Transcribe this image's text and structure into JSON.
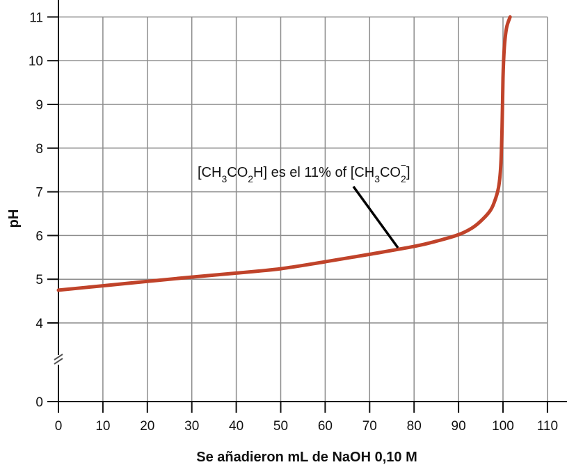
{
  "chart_data": {
    "type": "line",
    "title": "",
    "xlabel": "Se añadieron mL de NaOH 0,10 M",
    "ylabel": "pH",
    "xlim": [
      0,
      110
    ],
    "ylim": [
      0,
      11
    ],
    "y_axis_break": [
      0,
      4
    ],
    "grid": true,
    "legend": null,
    "x_ticks": [
      0,
      10,
      20,
      30,
      40,
      50,
      60,
      70,
      80,
      90,
      100,
      110
    ],
    "y_ticks": [
      0,
      4,
      5,
      6,
      7,
      8,
      9,
      10,
      11
    ],
    "series": [
      {
        "name": "Titration curve",
        "color": "#C0432A",
        "x": [
          0,
          10,
          20,
          30,
          40,
          50,
          60,
          70,
          80,
          85,
          90,
          93,
          95,
          97,
          98,
          99,
          99.5,
          99.8,
          100,
          100.3,
          100.8,
          101.6
        ],
        "y": [
          4.75,
          4.85,
          4.95,
          5.05,
          5.14,
          5.24,
          5.4,
          5.57,
          5.75,
          5.87,
          6.02,
          6.17,
          6.33,
          6.55,
          6.75,
          7.1,
          7.6,
          8.5,
          9.6,
          10.3,
          10.75,
          11.0
        ]
      }
    ],
    "annotations": [
      {
        "text_parts": [
          "[CH",
          "3",
          "CO",
          "2",
          "H] es el 11% of [CH",
          "3",
          "CO",
          "2",
          "−",
          "]"
        ],
        "plain_text": "[CH3CO2H] es el 11% of [CH3CO2−]",
        "points_to": {
          "x": 76,
          "y": 5.67
        }
      }
    ]
  },
  "labels": {
    "xlabel": "Se añadieron mL de NaOH 0,10 M",
    "ylabel": "pH",
    "annotation": {
      "p1": "[CH",
      "s1": "3",
      "p2": "CO",
      "s2": "2",
      "p3": "H] es el 11% of [CH",
      "s3": "3",
      "p4": "CO",
      "s4": "2",
      "sup": "−",
      "p5": "]"
    }
  },
  "colors": {
    "curve": "#C0432A",
    "grid": "#8c8c8c",
    "axis": "#111111"
  }
}
